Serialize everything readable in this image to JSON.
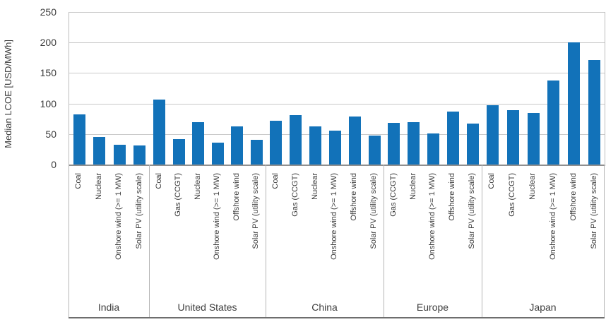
{
  "chart_data": {
    "type": "bar",
    "title": "",
    "ylabel": "Median LCOE [USD/MWh]",
    "xlabel": "",
    "ylim": [
      0,
      250
    ],
    "yticks": [
      0,
      50,
      100,
      150,
      200,
      250
    ],
    "grid": "horizontal",
    "legend_position": "none",
    "bar_color": "#1272b9",
    "groups": [
      {
        "country": "India",
        "bars": [
          {
            "label": "Coal",
            "value": 82
          },
          {
            "label": "Nuclear",
            "value": 45
          },
          {
            "label": "Onshore wind (>= 1 MW)",
            "value": 32
          },
          {
            "label": "Solar PV (utility scale)",
            "value": 31
          }
        ]
      },
      {
        "country": "United States",
        "bars": [
          {
            "label": "Coal",
            "value": 107
          },
          {
            "label": "Gas (CCGT)",
            "value": 42
          },
          {
            "label": "Nuclear",
            "value": 69
          },
          {
            "label": "Onshore wind (>= 1 MW)",
            "value": 36
          },
          {
            "label": "Offshore wind",
            "value": 62
          },
          {
            "label": "Solar PV (utility scale)",
            "value": 41
          }
        ]
      },
      {
        "country": "China",
        "bars": [
          {
            "label": "Coal",
            "value": 72
          },
          {
            "label": "Gas (CCGT)",
            "value": 81
          },
          {
            "label": "Nuclear",
            "value": 63
          },
          {
            "label": "Onshore wind (>= 1 MW)",
            "value": 55
          },
          {
            "label": "Offshore wind",
            "value": 79
          },
          {
            "label": "Solar PV (utility scale)",
            "value": 47
          }
        ]
      },
      {
        "country": "Europe",
        "bars": [
          {
            "label": "Gas (CCGT)",
            "value": 68
          },
          {
            "label": "Nuclear",
            "value": 69
          },
          {
            "label": "Onshore wind (>= 1 MW)",
            "value": 51
          },
          {
            "label": "Offshore wind",
            "value": 87
          },
          {
            "label": "Solar PV (utility scale)",
            "value": 67
          }
        ]
      },
      {
        "country": "Japan",
        "bars": [
          {
            "label": "Coal",
            "value": 97
          },
          {
            "label": "Gas (CCGT)",
            "value": 89
          },
          {
            "label": "Nuclear",
            "value": 84
          },
          {
            "label": "Onshore wind (>= 1 MW)",
            "value": 138
          },
          {
            "label": "Offshore wind",
            "value": 200
          },
          {
            "label": "Solar PV (utility scale)",
            "value": 171
          }
        ]
      }
    ]
  },
  "colors": {
    "bar": "#1272b9",
    "gridline": "#c9c9c9",
    "axis_line": "#8f8f8f",
    "separator": "#b5b5b5",
    "text": "#3d3d3d"
  }
}
